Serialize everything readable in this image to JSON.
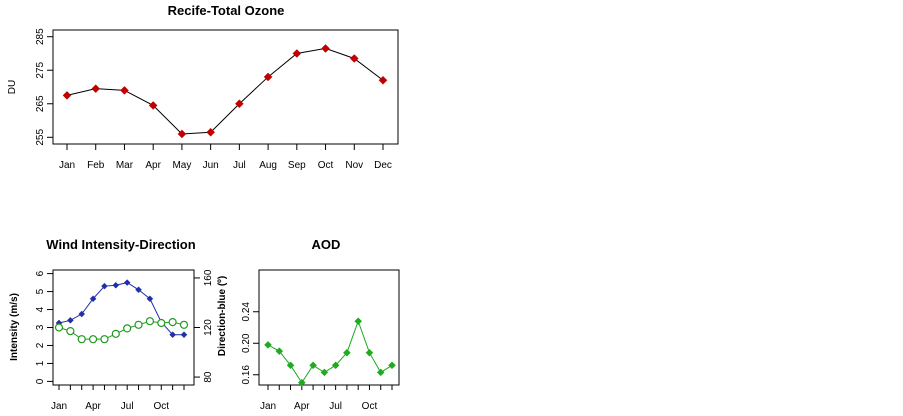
{
  "chart_data": [
    {
      "id": "ozone",
      "type": "line",
      "title": "Recife-Total Ozone",
      "xlabel": "",
      "ylabel": "DU",
      "ylim": [
        253,
        287
      ],
      "yticks": [
        255,
        265,
        275,
        285
      ],
      "categories": [
        "Jan",
        "Feb",
        "Mar",
        "Apr",
        "May",
        "Jun",
        "Jul",
        "Aug",
        "Sep",
        "Oct",
        "Nov",
        "Dec"
      ],
      "series": [
        {
          "values": [
            267.5,
            269.5,
            269,
            264.5,
            256,
            256.5,
            265,
            273,
            280,
            281.5,
            278.5,
            272
          ],
          "color": "#c00000"
        }
      ],
      "grid": false
    },
    {
      "id": "wind",
      "type": "line",
      "title": "Wind Intensity-Direction",
      "ylabel": "Intensity (m/s)",
      "y2label": "Direction-blue (º)",
      "ylim": [
        -0.2,
        6.2
      ],
      "yticks": [
        0,
        1,
        2,
        3,
        4,
        5,
        6
      ],
      "y2lim": [
        73.6,
        166.4
      ],
      "y2ticks": [
        80,
        120,
        160
      ],
      "xticks": [
        {
          "month": 1,
          "label": "Jan"
        },
        {
          "month": 4,
          "label": "Apr"
        },
        {
          "month": 7,
          "label": "Jul"
        },
        {
          "month": 10,
          "label": "Oct"
        }
      ],
      "series": [
        {
          "axis": "left",
          "marker": "filled-diamond",
          "color": "#1f2fa8",
          "x": [
            1,
            2,
            3,
            4,
            5,
            6,
            7,
            8,
            9,
            10,
            11,
            12
          ],
          "values": [
            3.25,
            3.4,
            3.75,
            4.6,
            5.3,
            5.35,
            5.5,
            5.1,
            4.6,
            3.3,
            2.6,
            2.6
          ]
        },
        {
          "axis": "left",
          "marker": "open-circle",
          "color": "#1f9a1f",
          "x": [
            1,
            2,
            3,
            4,
            5,
            6,
            7,
            8,
            9,
            10,
            11,
            12
          ],
          "values": [
            3.0,
            2.8,
            2.35,
            2.35,
            2.35,
            2.65,
            2.95,
            3.15,
            3.35,
            3.25,
            3.3,
            3.15
          ]
        }
      ],
      "grid": false
    },
    {
      "id": "aod",
      "type": "line",
      "title": "AOD",
      "ylabel": "",
      "ylim": [
        0.147,
        0.293
      ],
      "yticks": [
        0.16,
        0.2,
        0.24
      ],
      "ytick_labels": [
        "0.16",
        "0.20",
        "0.24"
      ],
      "xticks": [
        {
          "month": 1,
          "label": "Jan"
        },
        {
          "month": 4,
          "label": "Apr"
        },
        {
          "month": 7,
          "label": "Jul"
        },
        {
          "month": 10,
          "label": "Oct"
        }
      ],
      "series": [
        {
          "marker": "filled-diamond",
          "color": "#1faa1f",
          "x": [
            1,
            2,
            3,
            4,
            5,
            6,
            7,
            8,
            9,
            10,
            11,
            12
          ],
          "values": [
            0.198,
            0.19,
            0.172,
            0.15,
            0.172,
            0.163,
            0.172,
            0.188,
            0.228,
            0.188,
            0.163,
            0.172
          ]
        }
      ],
      "grid": false
    }
  ]
}
